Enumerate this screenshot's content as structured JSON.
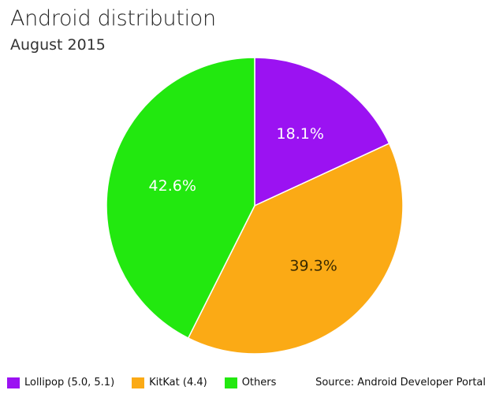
{
  "chart_data": {
    "type": "pie",
    "title": "Android distribution",
    "subtitle": "August 2015",
    "source": "Source: Android Developer Portal",
    "legend_position": "bottom-left",
    "slices": [
      {
        "name": "Lollipop (5.0, 5.1)",
        "value": 18.1,
        "label": "18.1%",
        "color": "#9b12f2",
        "label_color": "#ffffff"
      },
      {
        "name": "KitKat (4.4)",
        "value": 39.3,
        "label": "39.3%",
        "color": "#fbaa15",
        "label_color": "#3a2a00"
      },
      {
        "name": "Others",
        "value": 42.6,
        "label": "42.6%",
        "color": "#22e80f",
        "label_color": "#ffffff"
      }
    ]
  }
}
